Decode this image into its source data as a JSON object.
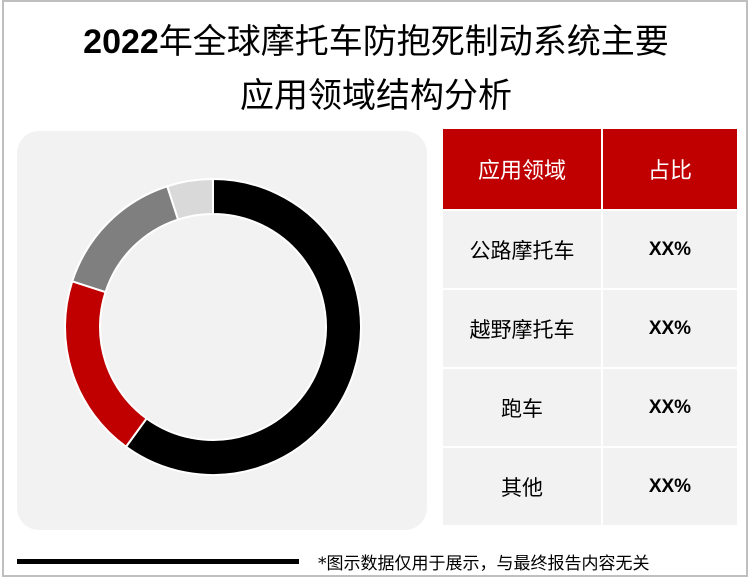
{
  "title": {
    "year": "2022",
    "line1_rest": "年全球摩托车防抱死制动系统主要",
    "line2": "应用领域结构分析"
  },
  "table": {
    "headers": [
      "应用领域",
      "占比"
    ],
    "rows": [
      {
        "label": "公路摩托车",
        "value": "XX%"
      },
      {
        "label": "越野摩托车",
        "value": "XX%"
      },
      {
        "label": "跑车",
        "value": "XX%"
      },
      {
        "label": "其他",
        "value": "XX%"
      }
    ]
  },
  "footnote": "*图示数据仅用于展示，与最终报告内容无关",
  "colors": {
    "accent": "#c00000",
    "panel": "#f2f2f2",
    "slice_1": "#000000",
    "slice_2": "#c00000",
    "slice_3": "#7f7f7f",
    "slice_4": "#d9d9d9"
  },
  "chart_data": {
    "type": "pie",
    "subtype": "donut",
    "title": "2022年全球摩托车防抱死制动系统主要应用领域结构分析",
    "categories": [
      "公路摩托车",
      "越野摩托车",
      "跑车",
      "其他"
    ],
    "values": [
      60,
      20,
      15,
      5
    ],
    "unit": "%",
    "colors": [
      "#000000",
      "#c00000",
      "#7f7f7f",
      "#d9d9d9"
    ],
    "start_angle": "12 o'clock, clockwise",
    "legend": "table on right (values shown as XX%)"
  }
}
